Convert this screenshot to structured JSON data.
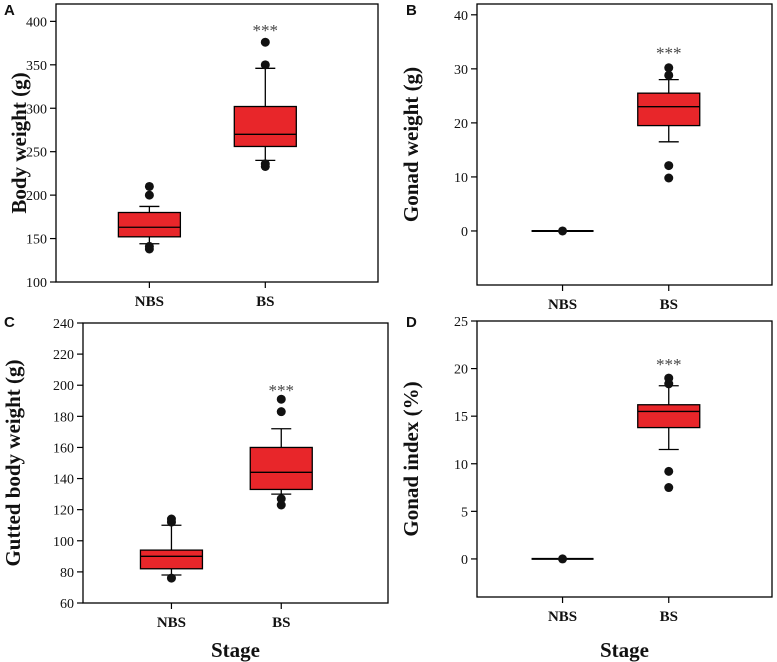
{
  "chart_data": [
    {
      "type": "box",
      "panel": "A",
      "categories": [
        "NBS",
        "BS"
      ],
      "xlabel": "",
      "ylabel": "Body weight (g)",
      "ylim": [
        100,
        420
      ],
      "yticks": [
        100,
        150,
        200,
        250,
        300,
        350,
        400
      ],
      "boxes": [
        {
          "category": "NBS",
          "q1": 152,
          "median": 163,
          "q3": 180,
          "whisker_low": 144,
          "whisker_high": 187,
          "outliers": [
            138,
            141,
            200,
            210
          ]
        },
        {
          "category": "BS",
          "q1": 256,
          "median": 270,
          "q3": 302,
          "whisker_low": 240,
          "whisker_high": 346,
          "outliers": [
            233,
            236,
            350,
            376
          ]
        }
      ],
      "annotations": [
        {
          "category": "BS",
          "text": "***",
          "y": 390
        }
      ],
      "box_color": "#e8262a"
    },
    {
      "type": "box",
      "panel": "B",
      "categories": [
        "NBS",
        "BS"
      ],
      "xlabel": "",
      "ylabel": "Gonad weight (g)",
      "ylim": [
        -10,
        42
      ],
      "yticks": [
        0,
        10,
        20,
        30,
        40
      ],
      "boxes": [
        {
          "category": "NBS",
          "q1": 0,
          "median": 0,
          "q3": 0,
          "whisker_low": 0,
          "whisker_high": 0,
          "outliers": [
            0
          ]
        },
        {
          "category": "BS",
          "q1": 19.5,
          "median": 23,
          "q3": 25.5,
          "whisker_low": 16.5,
          "whisker_high": 28,
          "outliers": [
            9.8,
            12.1,
            28.8,
            30.2
          ]
        }
      ],
      "annotations": [
        {
          "category": "BS",
          "text": "***",
          "y": 33
        }
      ],
      "box_color": "#e8262a"
    },
    {
      "type": "box",
      "panel": "C",
      "categories": [
        "NBS",
        "BS"
      ],
      "xlabel": "Stage",
      "ylabel": "Gutted body weight (g)",
      "ylim": [
        60,
        240
      ],
      "yticks": [
        60,
        80,
        100,
        120,
        140,
        160,
        180,
        200,
        220,
        240
      ],
      "boxes": [
        {
          "category": "NBS",
          "q1": 82,
          "median": 90,
          "q3": 94,
          "whisker_low": 78,
          "whisker_high": 110,
          "outliers": [
            76,
            112,
            114
          ]
        },
        {
          "category": "BS",
          "q1": 133,
          "median": 144,
          "q3": 160,
          "whisker_low": 130,
          "whisker_high": 172,
          "outliers": [
            123,
            127,
            183,
            191
          ]
        }
      ],
      "annotations": [
        {
          "category": "BS",
          "text": "***",
          "y": 197
        }
      ],
      "box_color": "#e8262a"
    },
    {
      "type": "box",
      "panel": "D",
      "categories": [
        "NBS",
        "BS"
      ],
      "xlabel": "Stage",
      "ylabel": "Gonad index (%)",
      "ylim": [
        -4,
        25
      ],
      "yticks": [
        0,
        5,
        10,
        15,
        20,
        25
      ],
      "boxes": [
        {
          "category": "NBS",
          "q1": 0,
          "median": 0,
          "q3": 0,
          "whisker_low": 0,
          "whisker_high": 0,
          "outliers": [
            0
          ]
        },
        {
          "category": "BS",
          "q1": 13.8,
          "median": 15.5,
          "q3": 16.2,
          "whisker_low": 11.5,
          "whisker_high": 18.2,
          "outliers": [
            7.5,
            9.2,
            18.4,
            19
          ]
        }
      ],
      "annotations": [
        {
          "category": "BS",
          "text": "***",
          "y": 20.5
        }
      ],
      "box_color": "#e8262a"
    }
  ]
}
